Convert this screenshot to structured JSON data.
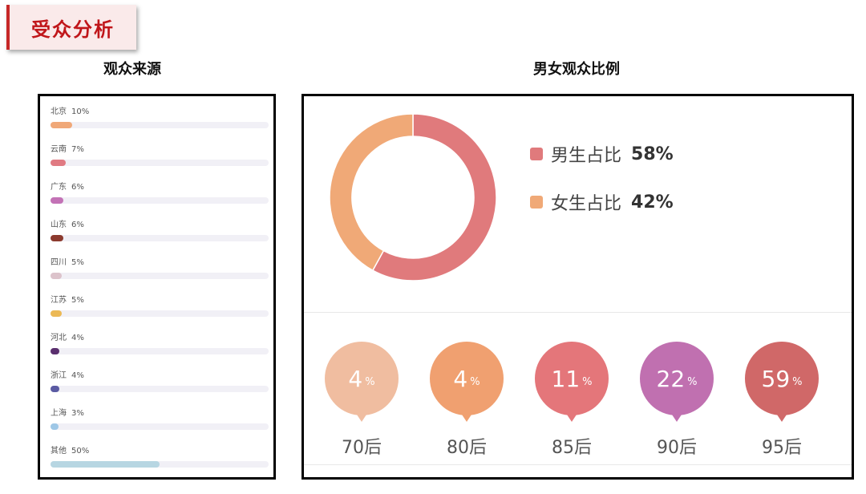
{
  "header": {
    "title": "受众分析"
  },
  "sources": {
    "title": "观众来源",
    "chart_data": {
      "type": "bar",
      "title": "观众来源",
      "categories": [
        "北京",
        "云南",
        "广东",
        "山东",
        "四川",
        "江苏",
        "河北",
        "浙江",
        "上海",
        "其他"
      ],
      "values": [
        10,
        7,
        6,
        6,
        5,
        5,
        4,
        4,
        3,
        50
      ],
      "value_labels": [
        "10%",
        "7%",
        "6%",
        "6%",
        "5%",
        "5%",
        "4%",
        "4%",
        "3%",
        "50%"
      ],
      "colors": [
        "#f0a878",
        "#e07a82",
        "#c372b6",
        "#8c3a2e",
        "#dcc3cb",
        "#ecb955",
        "#5a2f6e",
        "#5b5ba3",
        "#9ec7e6",
        "#b7d6e2"
      ],
      "xlim": [
        0,
        100
      ],
      "unit": "%"
    }
  },
  "gender": {
    "title": "男女观众比例",
    "chart_data": {
      "type": "pie",
      "categories": [
        "男生占比",
        "女生占比"
      ],
      "values": [
        58,
        42
      ],
      "value_labels": [
        "58%",
        "42%"
      ],
      "colors": [
        "#e07a7c",
        "#f0a977"
      ],
      "donut": true,
      "legend": "right"
    }
  },
  "age": {
    "chart_data": {
      "type": "bubble",
      "categories": [
        "70后",
        "80后",
        "85后",
        "90后",
        "95后"
      ],
      "values": [
        4,
        4,
        11,
        22,
        59
      ],
      "value_labels": [
        "4",
        "4",
        "11",
        "22",
        "59"
      ],
      "unit": "%",
      "colors": [
        "#f0bda0",
        "#f0a070",
        "#e4767a",
        "#c070b0",
        "#d06868"
      ]
    }
  }
}
